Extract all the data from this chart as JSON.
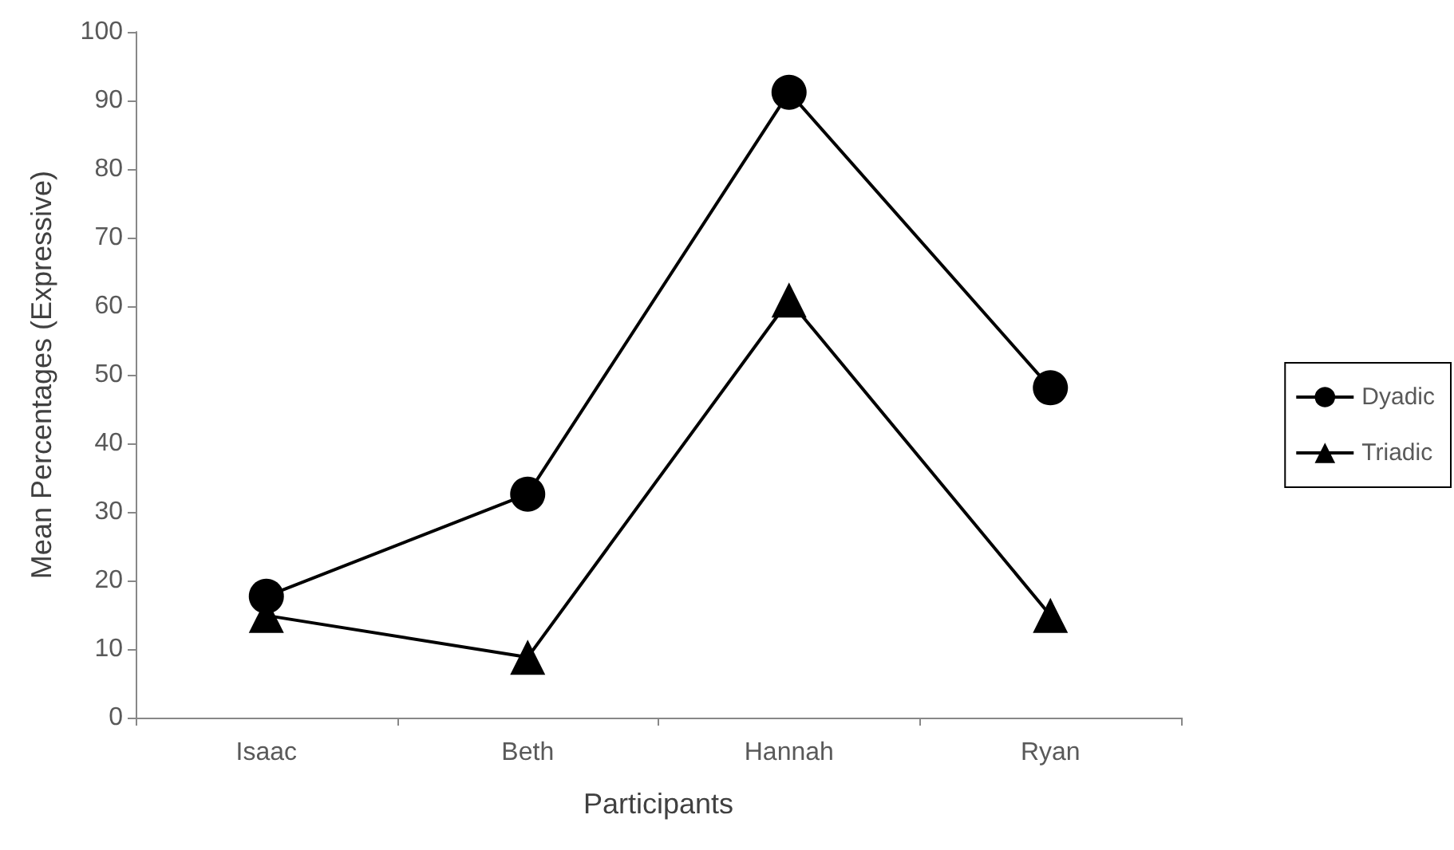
{
  "chart_data": {
    "type": "line",
    "xlabel": "Participants",
    "ylabel": "Mean Percentages (Expressive)",
    "categories": [
      "Isaac",
      "Beth",
      "Hannah",
      "Ryan"
    ],
    "series": [
      {
        "name": "Dyadic",
        "color": "#000000",
        "marker": "circle",
        "values": [
          17.7,
          32.6,
          91.2,
          48.1
        ]
      },
      {
        "name": "Triadic",
        "color": "#000000",
        "marker": "triangle",
        "values": [
          14.9,
          8.8,
          60.9,
          14.9
        ]
      }
    ],
    "ylim": [
      0,
      100
    ],
    "yticks": [
      0,
      10,
      20,
      30,
      40,
      50,
      60,
      70,
      80,
      90,
      100
    ],
    "grid": false,
    "legend": "right",
    "line_style": "solid"
  }
}
